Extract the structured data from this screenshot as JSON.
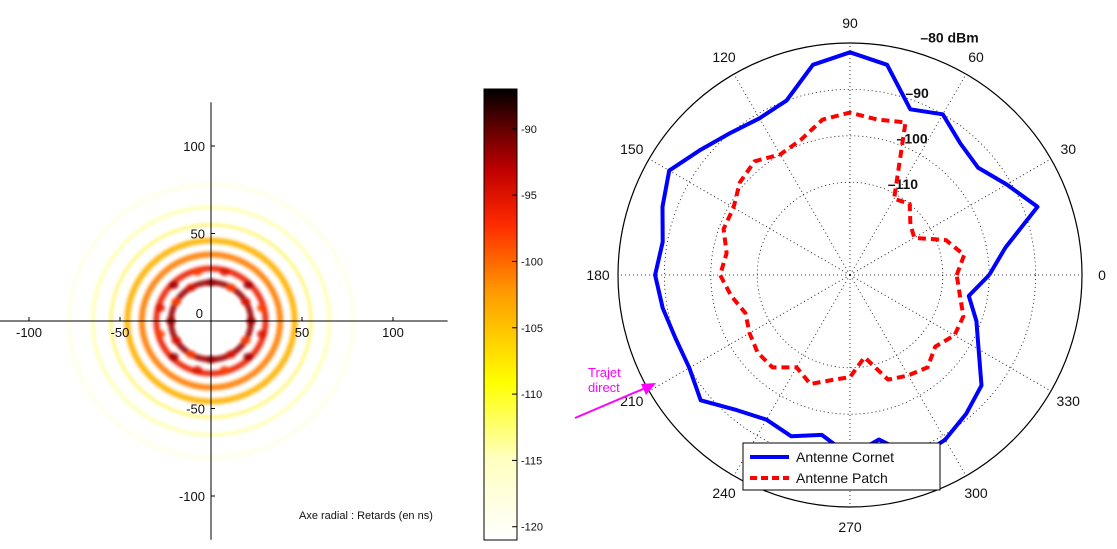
{
  "chart_data": [
    {
      "type": "heatmap",
      "note": "Axe radial : Retards (en ns)",
      "x_ticks": [
        "-100",
        "-50",
        "0",
        "50",
        "100"
      ],
      "y_ticks": [
        "100",
        "50",
        "-50",
        "-100"
      ],
      "x_tick_values": [
        -100,
        -50,
        0,
        50,
        100
      ],
      "y_tick_values": [
        100,
        50,
        -50,
        -100
      ],
      "xlim": [
        -110,
        130
      ],
      "ylim": [
        -125,
        125
      ],
      "colormap": "hot (reversed: white = low, black = high)",
      "colorbar": {
        "range": [
          -121,
          -87
        ],
        "ticks": [
          "-90",
          "-95",
          "-100",
          "-105",
          "-110",
          "-115",
          "-120"
        ],
        "tick_values": [
          -90,
          -95,
          -100,
          -105,
          -110,
          -115,
          -120
        ]
      },
      "rings": [
        {
          "radius_ns": 22,
          "value": -92
        },
        {
          "radius_ns": 30,
          "value": -96
        },
        {
          "radius_ns": 38,
          "value": -101
        },
        {
          "radius_ns": 46,
          "value": -104
        },
        {
          "radius_ns": 55,
          "value": -108
        },
        {
          "radius_ns": 65,
          "value": -112
        },
        {
          "radius_ns": 78,
          "value": -116
        }
      ]
    },
    {
      "type": "polar",
      "angle_labels": [
        "0",
        "30",
        "60",
        "90",
        "120",
        "150",
        "180",
        "210",
        "240",
        "270",
        "300",
        "330"
      ],
      "angle_values": [
        0,
        30,
        60,
        90,
        120,
        150,
        180,
        210,
        240,
        270,
        300,
        330
      ],
      "ring_labels": [
        "–80 dBm",
        "–90",
        "–100",
        "–110"
      ],
      "ring_values": [
        -80,
        -90,
        -100,
        -110
      ],
      "rlim": [
        -130,
        -80
      ],
      "grid": true,
      "legend_position": "bottom",
      "annotation": {
        "line1": "Trajet",
        "line2": "direct",
        "color": "#ff00ff"
      },
      "series": [
        {
          "name": "Antenne Cornet",
          "color": "#0000ff",
          "style": "solid",
          "angles": [
            0,
            10,
            20,
            30,
            40,
            50,
            60,
            70,
            80,
            90,
            100,
            110,
            120,
            130,
            140,
            150,
            160,
            170,
            180,
            190,
            200,
            210,
            220,
            230,
            240,
            250,
            260,
            270,
            280,
            290,
            300,
            310,
            320,
            330,
            340,
            350
          ],
          "values": [
            -100,
            -96,
            -87,
            -91,
            -94,
            -93,
            -90,
            -92,
            -84,
            -82,
            -84,
            -90,
            -91,
            -90,
            -88,
            -85,
            -87,
            -89,
            -88,
            -89,
            -90,
            -90,
            -88,
            -92,
            -94,
            -93,
            -95,
            -91,
            -94,
            -88,
            -89,
            -91,
            -93,
            -98,
            -101,
            -104
          ]
        },
        {
          "name": "Antenne Patch",
          "color": "#ff0000",
          "style": "dashed",
          "angles": [
            0,
            10,
            20,
            30,
            40,
            50,
            60,
            70,
            80,
            90,
            100,
            110,
            120,
            130,
            140,
            150,
            160,
            170,
            180,
            190,
            200,
            210,
            220,
            230,
            240,
            250,
            260,
            270,
            280,
            290,
            300,
            310,
            320,
            330,
            340,
            350
          ],
          "values": [
            -107,
            -105,
            -108,
            -114,
            -113,
            -110,
            -111,
            -95,
            -96,
            -95,
            -96,
            -99,
            -100,
            -98,
            -99,
            -101,
            -101,
            -103,
            -102,
            -104,
            -106,
            -105,
            -104,
            -104,
            -107,
            -105,
            -107,
            -108,
            -112,
            -106,
            -105,
            -104,
            -106,
            -104,
            -104,
            -106
          ]
        }
      ]
    }
  ]
}
